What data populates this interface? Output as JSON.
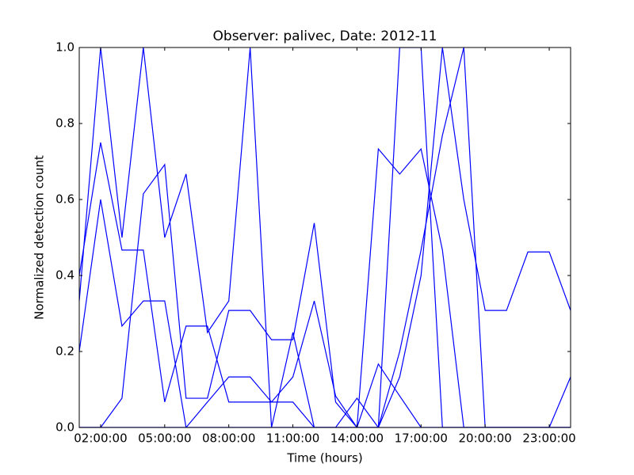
{
  "chart_data": {
    "type": "line",
    "title": "Observer: palivec, Date: 2012-11",
    "xlabel": "Time (hours)",
    "ylabel": "Normalized detection count",
    "x": [
      1,
      2,
      3,
      4,
      5,
      6,
      7,
      8,
      9,
      10,
      11,
      12,
      13,
      14,
      15,
      16,
      17,
      18,
      19,
      20,
      21,
      22,
      23,
      24
    ],
    "series": [
      {
        "color": "#0000ff",
        "values": [
          0.333,
          1,
          0.5,
          1,
          0.5,
          0.667,
          0.25,
          0.333,
          1,
          0,
          0.25,
          0,
          0,
          0,
          0,
          1,
          1,
          0,
          0,
          0,
          0,
          0,
          0,
          0
        ]
      },
      {
        "color": "#0000ff",
        "values": [
          0.4,
          0.75,
          0.467,
          0.467,
          0.067,
          0.267,
          0.267,
          0.067,
          0.067,
          0.067,
          0.067,
          0,
          0,
          0,
          0,
          0,
          0,
          0,
          0,
          0,
          0,
          0,
          0,
          0
        ]
      },
      {
        "color": "#0000ff",
        "values": [
          0.2,
          0.6,
          0.267,
          0.333,
          0.333,
          0,
          0.067,
          0.133,
          0.133,
          0.067,
          0.133,
          0.333,
          0.083,
          0,
          0.167,
          0.083,
          0,
          0,
          0,
          0,
          0,
          0,
          0,
          0
        ]
      },
      {
        "color": "#0000ff",
        "values": [
          0,
          0,
          0.077,
          0.615,
          0.692,
          0.077,
          0.077,
          0.308,
          0.308,
          0.231,
          0.231,
          0.538,
          0.067,
          0,
          0.733,
          0.667,
          0.733,
          0.467,
          0,
          0,
          0,
          0,
          0,
          0
        ]
      },
      {
        "color": "#0000ff",
        "values": [
          0,
          0,
          0,
          0,
          0,
          0,
          0,
          0,
          0,
          0,
          0,
          0,
          0,
          0,
          0,
          0.133,
          0.4,
          1,
          0.6,
          0.308,
          0.308,
          0.462,
          0.462,
          0.308
        ]
      },
      {
        "color": "#0000ff",
        "values": [
          0,
          0,
          0,
          0,
          0,
          0,
          0,
          0,
          0,
          0,
          0,
          0,
          0,
          0.077,
          0,
          0.2,
          0.467,
          0.769,
          1,
          0,
          0,
          0,
          0,
          0.133
        ]
      }
    ],
    "xlim": [
      1,
      24
    ],
    "xticks": [
      {
        "value": 2,
        "label": "02:00:00"
      },
      {
        "value": 5,
        "label": "05:00:00"
      },
      {
        "value": 8,
        "label": "08:00:00"
      },
      {
        "value": 11,
        "label": "11:00:00"
      },
      {
        "value": 14,
        "label": "14:00:00"
      },
      {
        "value": 17,
        "label": "17:00:00"
      },
      {
        "value": 20,
        "label": "20:00:00"
      },
      {
        "value": 23,
        "label": "23:00:00"
      }
    ],
    "ylim": [
      0,
      1
    ],
    "yticks": [
      {
        "value": 0,
        "label": "0.0"
      },
      0.2,
      0.4,
      0.6,
      0.8,
      {
        "value": 1,
        "label": "1.0"
      }
    ]
  }
}
